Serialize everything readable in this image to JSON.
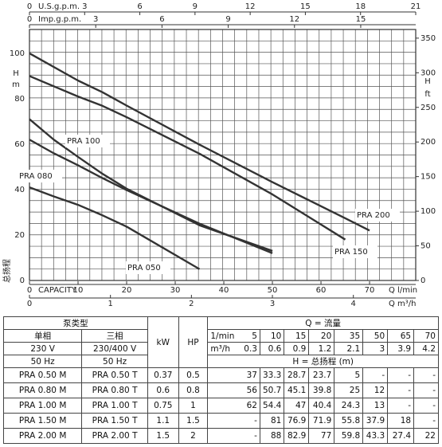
{
  "chart_data": {
    "type": "line",
    "xlim": [
      0,
      79.5
    ],
    "xticks": [
      0,
      10,
      20,
      30,
      40,
      50,
      60,
      70
    ],
    "xlabel": "Q l/min",
    "xlabel_left": "CAPACITY",
    "ylim": [
      0,
      110.5
    ],
    "yticks": [
      0,
      20,
      40,
      60,
      80,
      100
    ],
    "ylabel": "H",
    "ylabel_unit": "m",
    "ylabel_cn": "总扬程",
    "y2lim": [
      0,
      362.5
    ],
    "y2ticks": [
      0,
      50,
      100,
      150,
      200,
      250,
      300,
      350
    ],
    "y2label": "H",
    "y2label_unit": "ft",
    "x_top1_lim": [
      0,
      21
    ],
    "x_top1_ticks": [
      0,
      3,
      6,
      9,
      12,
      15,
      18,
      21
    ],
    "x_top1_label": "U.S.g.p.m.",
    "x_top2_lim": [
      0,
      17.49
    ],
    "x_top2_ticks": [
      0,
      3,
      6,
      9,
      12,
      15
    ],
    "x_top2_label": "Imp.g.p.m.",
    "x_bottom2_lim": [
      0,
      4.77
    ],
    "x_bottom2_ticks": [
      0,
      1,
      2,
      3,
      4
    ],
    "x_bottom2_label": "Q m³/h",
    "series": [
      {
        "name": "PRA 200",
        "color": "#333",
        "x": [
          0,
          10,
          15,
          20,
          35,
          50,
          65,
          70
        ],
        "values": [
          100,
          88,
          82.9,
          77,
          59.8,
          43.3,
          27.4,
          22
        ]
      },
      {
        "name": "PRA 150",
        "color": "#333",
        "x": [
          0,
          10,
          15,
          20,
          35,
          50,
          65
        ],
        "values": [
          90,
          81,
          76.9,
          71.9,
          55.8,
          37.9,
          18
        ]
      },
      {
        "name": "PRA 100",
        "color": "#333",
        "x": [
          0,
          5,
          10,
          15,
          20,
          35,
          50
        ],
        "values": [
          71,
          62,
          54.4,
          47,
          40.4,
          24.3,
          13
        ]
      },
      {
        "name": "PRA 080",
        "color": "#333",
        "x": [
          0,
          5,
          10,
          15,
          20,
          35,
          50
        ],
        "values": [
          62,
          56,
          50.7,
          45.1,
          39.8,
          25,
          12
        ]
      },
      {
        "name": "PRA 050",
        "color": "#333",
        "x": [
          0,
          5,
          10,
          15,
          20,
          35
        ],
        "values": [
          41,
          37,
          33.3,
          28.7,
          23.7,
          5
        ]
      }
    ]
  },
  "table": {
    "header": {
      "type": "泵类型",
      "single": "单相",
      "three": "三相",
      "v1": "230 V",
      "v3": "230/400 V",
      "hz1": "50 Hz",
      "hz3": "50 Hz",
      "kw": "kW",
      "hp": "HP",
      "q": "Q = 流量",
      "lmin": "1/min",
      "m3h": "m³/h",
      "h": "H = 总扬程 (m)",
      "lmin_values": [
        "5",
        "10",
        "15",
        "20",
        "35",
        "50",
        "65",
        "70"
      ],
      "m3h_values": [
        "0.3",
        "0.6",
        "0.9",
        "1.2",
        "2.1",
        "3",
        "3.9",
        "4.2"
      ]
    },
    "rows": [
      [
        "PRA 0.50 M",
        "PRA 0.50 T",
        "0.37",
        "0.5",
        "37",
        "33.3",
        "28.7",
        "23.7",
        "5",
        "-",
        "-",
        "-"
      ],
      [
        "PRA 0.80 M",
        "PRA 0.80 T",
        "0.6",
        "0.8",
        "56",
        "50.7",
        "45.1",
        "39.8",
        "25",
        "12",
        "-",
        "-"
      ],
      [
        "PRA 1.00 M",
        "PRA 1.00 T",
        "0.75",
        "1",
        "62",
        "54.4",
        "47",
        "40.4",
        "24.3",
        "13",
        "-",
        "-"
      ],
      [
        "PRA 1.50 M",
        "PRA 1.50 T",
        "1.1",
        "1.5",
        "-",
        "81",
        "76.9",
        "71.9",
        "55.8",
        "37.9",
        "18",
        "-"
      ],
      [
        "PRA 2.00 M",
        "PRA 2.00 T",
        "1.5",
        "2",
        "-",
        "88",
        "82.9",
        "77",
        "59.8",
        "43.3",
        "27.4",
        "22"
      ]
    ]
  }
}
